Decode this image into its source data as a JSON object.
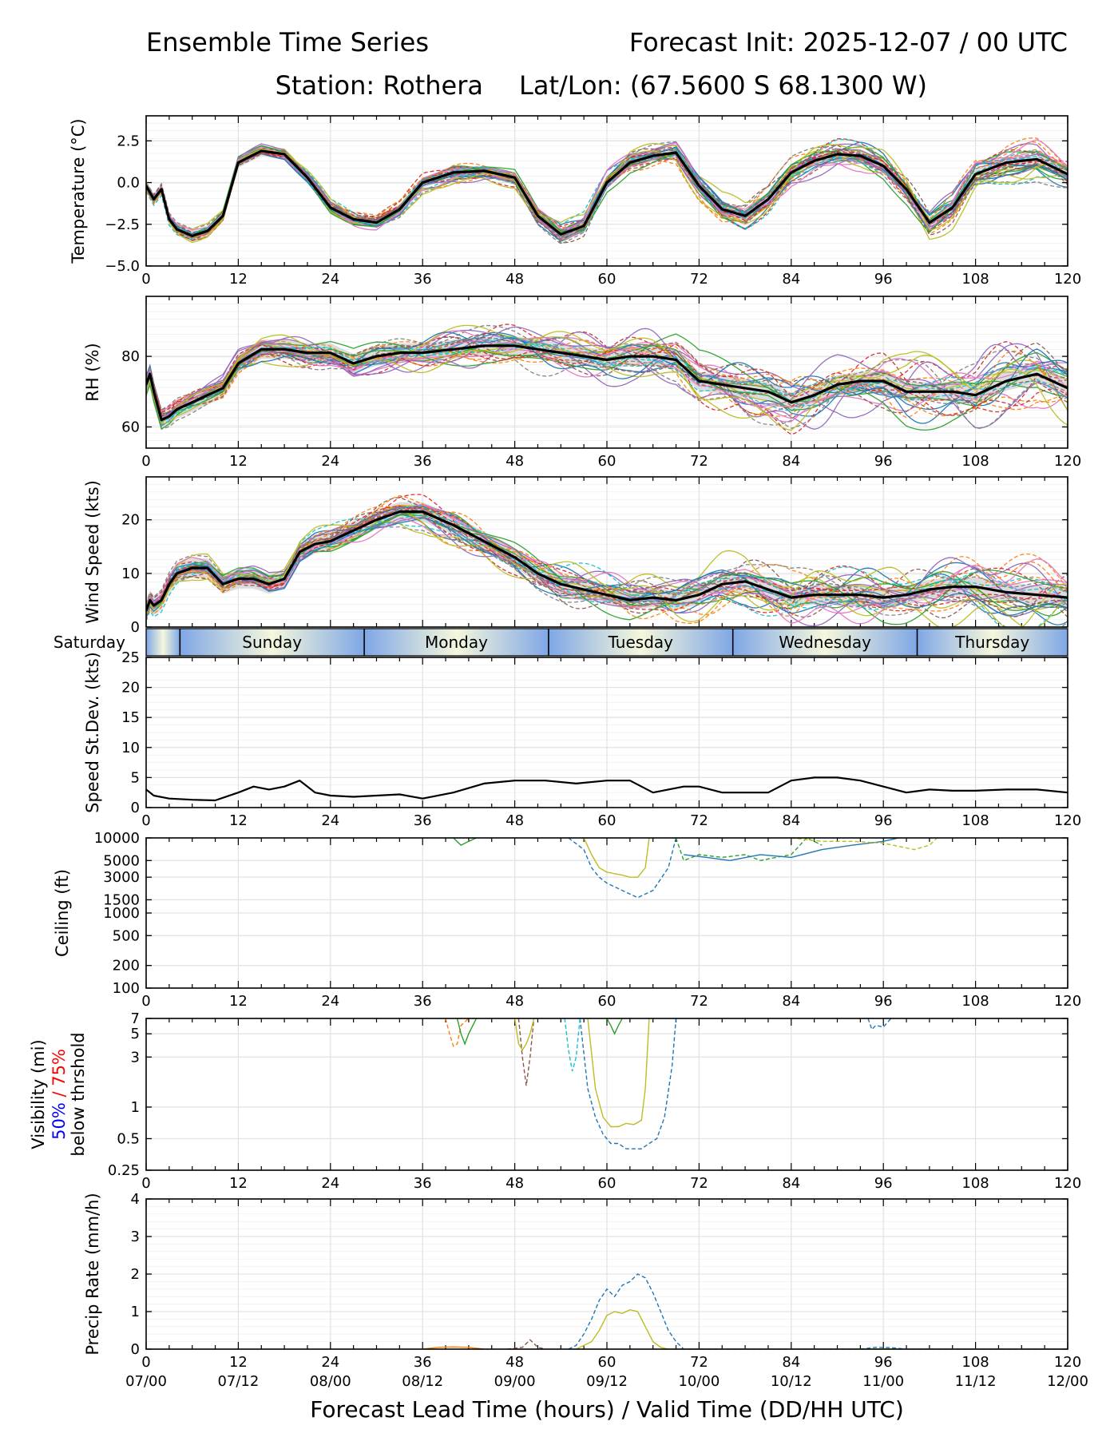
{
  "header": {
    "title_left": "Ensemble Time Series",
    "title_right": "Forecast Init: 2025-12-07 / 00 UTC",
    "station": "Station: Rothera",
    "latlon": "Lat/Lon: (67.5600 S 68.1300 W)"
  },
  "colors": {
    "mean": "#000000",
    "spread": "#d3d3d3",
    "members": [
      "#1f77b4",
      "#ff7f0e",
      "#2ca02c",
      "#d62728",
      "#9467bd",
      "#8c564b",
      "#e377c2",
      "#7f7f7f",
      "#bcbd22",
      "#17becf"
    ],
    "day_band_start": "#7fa7e6",
    "day_band_end": "#f5f7dc",
    "vis_50": "#0000ff",
    "vis_75": "#ff0000"
  },
  "day_band": {
    "labels": [
      "Saturday",
      "Sunday",
      "Monday",
      "Tuesday",
      "Wednesday",
      "Thursday"
    ],
    "boundaries_hours": [
      4.4,
      28.4,
      52.4,
      76.4,
      100.4
    ]
  },
  "x_axis": {
    "label": "Forecast Lead Time (hours) / Valid Time (DD/HH UTC)",
    "ticks": [
      0,
      12,
      24,
      36,
      48,
      60,
      72,
      84,
      96,
      108,
      120
    ],
    "tick_labels": [
      "0",
      "12",
      "24",
      "36",
      "48",
      "60",
      "72",
      "84",
      "96",
      "108",
      "120"
    ],
    "valid_labels": [
      "07/00",
      "07/12",
      "08/00",
      "08/12",
      "09/00",
      "09/12",
      "10/00",
      "10/12",
      "11/00",
      "11/12",
      "12/00"
    ],
    "range": [
      0,
      120
    ]
  },
  "chart_data": [
    {
      "id": "temp",
      "type": "line",
      "ylabel": "Temperature (°C)",
      "scale": "linear",
      "ylim": [
        -5,
        4
      ],
      "yticks": [
        -5,
        -2.5,
        0,
        2.5
      ],
      "ytick_labels": [
        "−5.0",
        "−2.5",
        "0.0",
        "2.5"
      ],
      "x": [
        0,
        1,
        2,
        3,
        4,
        6,
        8,
        10,
        12,
        15,
        18,
        21,
        24,
        27,
        30,
        33,
        36,
        40,
        44,
        48,
        51,
        54,
        57,
        60,
        63,
        66,
        69,
        72,
        75,
        78,
        81,
        84,
        87,
        90,
        93,
        96,
        99,
        102,
        105,
        108,
        112,
        116,
        120
      ],
      "mean": [
        -0.2,
        -1.0,
        -0.4,
        -2.2,
        -2.8,
        -3.2,
        -2.9,
        -2.0,
        1.2,
        1.9,
        1.7,
        0.3,
        -1.5,
        -2.2,
        -2.4,
        -1.6,
        0.0,
        0.6,
        0.7,
        0.3,
        -2.0,
        -3.1,
        -2.6,
        0.0,
        1.2,
        1.6,
        1.8,
        -0.2,
        -1.6,
        -2.0,
        -1.0,
        0.6,
        1.3,
        1.7,
        1.6,
        1.0,
        -0.4,
        -2.4,
        -1.5,
        0.5,
        1.2,
        1.4,
        0.5
      ],
      "spread": 0.35,
      "series_count": 30
    },
    {
      "id": "rh",
      "type": "line",
      "ylabel": "RH (%)",
      "scale": "linear",
      "ylim": [
        54,
        97
      ],
      "yticks": [
        60,
        80
      ],
      "ytick_labels": [
        "60",
        "80"
      ],
      "x": [
        0,
        0.5,
        1,
        2,
        3,
        4,
        6,
        8,
        10,
        12,
        15,
        18,
        21,
        24,
        27,
        30,
        33,
        36,
        40,
        44,
        48,
        51,
        54,
        57,
        60,
        63,
        66,
        69,
        72,
        75,
        78,
        81,
        84,
        87,
        90,
        93,
        96,
        99,
        102,
        105,
        108,
        112,
        116,
        120
      ],
      "mean": [
        72,
        75,
        70,
        62,
        63,
        65,
        67,
        69,
        71,
        78,
        82,
        82,
        81,
        81,
        78,
        80,
        81,
        81,
        82,
        83,
        83,
        82,
        81,
        80,
        79,
        80,
        80,
        79,
        73,
        72,
        71,
        70,
        67,
        69,
        72,
        73,
        73,
        70,
        70,
        70,
        69,
        73,
        75,
        71
      ],
      "spread": 3.0,
      "series_count": 30
    },
    {
      "id": "wind",
      "type": "line",
      "ylabel": "Wind Speed (kts)",
      "scale": "linear",
      "ylim": [
        0,
        28
      ],
      "yticks": [
        0,
        10,
        20
      ],
      "ytick_labels": [
        "0",
        "10",
        "20"
      ],
      "x": [
        0,
        0.5,
        1,
        2,
        3,
        4,
        6,
        8,
        10,
        12,
        14,
        16,
        18,
        20,
        22,
        24,
        27,
        30,
        33,
        36,
        40,
        44,
        48,
        51,
        54,
        57,
        60,
        63,
        66,
        69,
        72,
        75,
        78,
        81,
        84,
        87,
        90,
        93,
        96,
        99,
        102,
        105,
        108,
        112,
        116,
        120
      ],
      "mean": [
        3,
        5,
        4,
        5,
        8,
        10,
        11,
        11,
        8,
        9,
        9,
        8,
        9,
        14,
        15.5,
        16,
        18,
        20,
        21.5,
        21.5,
        19,
        16,
        13,
        10,
        8,
        7,
        6,
        5,
        5.5,
        5,
        6,
        8,
        8.5,
        7,
        5.5,
        6,
        6,
        6,
        5.5,
        6,
        7,
        7.5,
        7.5,
        6.5,
        6,
        5.5
      ],
      "spread": 2.0,
      "series_count": 30
    },
    {
      "id": "sd",
      "type": "line",
      "ylabel": "Speed St.Dev. (kts)",
      "scale": "linear",
      "ylim": [
        0,
        25
      ],
      "yticks": [
        0,
        5,
        10,
        15,
        20,
        25
      ],
      "ytick_labels": [
        "0",
        "5",
        "10",
        "15",
        "20",
        "25"
      ],
      "x": [
        0,
        1,
        3,
        6,
        9,
        12,
        14,
        16,
        18,
        20,
        22,
        24,
        27,
        30,
        33,
        36,
        40,
        44,
        48,
        52,
        56,
        60,
        63,
        66,
        70,
        72,
        75,
        78,
        81,
        84,
        87,
        90,
        93,
        96,
        99,
        102,
        105,
        108,
        112,
        116,
        120
      ],
      "mean": [
        3,
        2,
        1.5,
        1.3,
        1.2,
        2.5,
        3.5,
        3,
        3.5,
        4.5,
        2.5,
        2,
        1.8,
        2,
        2.2,
        1.5,
        2.5,
        4,
        4.5,
        4.5,
        4,
        4.5,
        4.5,
        2.5,
        3.5,
        3.5,
        2.5,
        2.5,
        2.5,
        4.5,
        5,
        5,
        4.5,
        3.5,
        2.5,
        3,
        2.8,
        2.8,
        3,
        3,
        2.5
      ],
      "series_count": 0
    },
    {
      "id": "ceil",
      "type": "line",
      "ylabel": "Ceiling (ft)",
      "scale": "log",
      "ylim": [
        100,
        10000
      ],
      "yticks": [
        100,
        200,
        500,
        1000,
        1500,
        3000,
        5000,
        10000
      ],
      "ytick_labels": [
        "100",
        "200",
        "500",
        "1000",
        "1500",
        "3000",
        "5000",
        "10000"
      ],
      "series": [
        {
          "name": "member-a",
          "color_index": 0,
          "x": [
            55,
            57,
            58,
            59,
            60,
            62,
            64,
            66,
            68,
            69
          ],
          "values": [
            10000,
            7000,
            4000,
            3000,
            2500,
            2000,
            1600,
            2000,
            4000,
            10000
          ]
        },
        {
          "name": "member-b",
          "color_index": 8,
          "x": [
            57,
            58,
            59,
            60,
            62,
            63,
            64,
            65,
            65.5
          ],
          "values": [
            10000,
            6000,
            4000,
            3500,
            3200,
            3000,
            3000,
            4000,
            10000
          ]
        },
        {
          "name": "member-c",
          "color_index": 2,
          "x": [
            69,
            70,
            72,
            75,
            78,
            80,
            82,
            84,
            86,
            88
          ],
          "values": [
            10000,
            5000,
            6000,
            5500,
            6000,
            5000,
            5500,
            6000,
            10000,
            8000
          ]
        },
        {
          "name": "member-d",
          "color_index": 0,
          "x": [
            70,
            73,
            76,
            80,
            84,
            88,
            92,
            96,
            98
          ],
          "values": [
            6000,
            5500,
            5000,
            6000,
            5500,
            7000,
            8000,
            9000,
            10000
          ]
        },
        {
          "name": "member-e",
          "color_index": 8,
          "x": [
            84,
            88,
            92,
            96,
            100,
            102,
            103
          ],
          "values": [
            10000,
            9000,
            9000,
            8500,
            7000,
            8000,
            10000
          ]
        },
        {
          "name": "member-f",
          "color_index": 2,
          "x": [
            40,
            41,
            42,
            43
          ],
          "values": [
            10000,
            8000,
            9000,
            10000
          ]
        }
      ]
    },
    {
      "id": "vis",
      "type": "line",
      "ylabel": "Visibility (mi)",
      "ylabel2_a": "50%",
      "ylabel2_b": " / 75%",
      "ylabel3": "below thrshold",
      "scale": "log",
      "ylim": [
        0.25,
        7
      ],
      "yticks": [
        0.25,
        0.5,
        1,
        3,
        5,
        7
      ],
      "ytick_labels": [
        "0.25",
        "0.5",
        "1",
        "3",
        "5",
        "7"
      ],
      "series": [
        {
          "name": "member-a",
          "color_index": 0,
          "x": [
            56.5,
            57.5,
            58.5,
            59.5,
            60.5,
            61.5,
            62.5,
            63.5,
            64.5,
            65.5,
            66.5,
            67.5,
            68.5,
            69
          ],
          "values": [
            7,
            1.5,
            0.8,
            0.55,
            0.45,
            0.45,
            0.4,
            0.4,
            0.4,
            0.45,
            0.5,
            0.8,
            2.5,
            7
          ]
        },
        {
          "name": "member-b",
          "color_index": 8,
          "x": [
            57.5,
            58.5,
            59.5,
            60.5,
            61.5,
            62.5,
            63.5,
            64.5,
            65,
            65.5
          ],
          "values": [
            7,
            1.5,
            0.8,
            0.65,
            0.65,
            0.7,
            0.68,
            0.75,
            1.5,
            7
          ]
        },
        {
          "name": "member-c",
          "color_index": 1,
          "x": [
            39,
            39.5,
            40,
            40.5,
            41,
            42
          ],
          "values": [
            7,
            5,
            3.8,
            4,
            6,
            7
          ]
        },
        {
          "name": "member-d",
          "color_index": 2,
          "x": [
            40.5,
            41,
            41.5,
            42,
            43
          ],
          "values": [
            7,
            5,
            4,
            5,
            7
          ]
        },
        {
          "name": "member-e",
          "color_index": 5,
          "x": [
            48.5,
            49,
            49.5,
            50,
            50.5
          ],
          "values": [
            7,
            3,
            1.6,
            3,
            7
          ]
        },
        {
          "name": "member-f",
          "color_index": 8,
          "x": [
            48,
            48.5,
            49,
            49.5,
            50,
            50.5
          ],
          "values": [
            7,
            4,
            3.5,
            4,
            5,
            7
          ]
        },
        {
          "name": "member-g",
          "color_index": 9,
          "x": [
            54.5,
            55,
            55.5,
            56,
            56.5
          ],
          "values": [
            7,
            3.5,
            2.2,
            3,
            7
          ]
        },
        {
          "name": "member-h",
          "color_index": 2,
          "x": [
            60,
            60.5,
            61,
            61.5,
            62
          ],
          "values": [
            7,
            6,
            5,
            6,
            7
          ]
        },
        {
          "name": "member-i",
          "color_index": 0,
          "x": [
            94,
            94.5,
            95,
            96,
            97
          ],
          "values": [
            7,
            5.5,
            6,
            5.8,
            7
          ]
        }
      ]
    },
    {
      "id": "precip",
      "type": "line",
      "ylabel": "Precip Rate (mm/h)",
      "scale": "linear",
      "ylim": [
        0,
        4
      ],
      "yticks": [
        0,
        1,
        2,
        3,
        4
      ],
      "ytick_labels": [
        "0",
        "1",
        "2",
        "3",
        "4"
      ],
      "series": [
        {
          "name": "member-a",
          "color_index": 0,
          "x": [
            55,
            56,
            57,
            58,
            59,
            60,
            61,
            62,
            63,
            64,
            65,
            66,
            67,
            68,
            69,
            70,
            120
          ],
          "values": [
            0,
            0.1,
            0.4,
            0.8,
            1.3,
            1.6,
            1.4,
            1.7,
            1.8,
            2.0,
            1.9,
            1.5,
            1.0,
            0.5,
            0.2,
            0,
            0
          ]
        },
        {
          "name": "member-b",
          "color_index": 8,
          "x": [
            56,
            58,
            59,
            60,
            61,
            62,
            63,
            64,
            65,
            66,
            67,
            68,
            120
          ],
          "values": [
            0,
            0.2,
            0.5,
            0.9,
            1.0,
            0.95,
            1.05,
            1.0,
            0.6,
            0.2,
            0.05,
            0,
            0
          ]
        },
        {
          "name": "member-c",
          "color_index": 5,
          "x": [
            47,
            49,
            50,
            51,
            52
          ],
          "values": [
            0,
            0.05,
            0.25,
            0.05,
            0
          ]
        },
        {
          "name": "member-d",
          "color_index": 1,
          "x": [
            36,
            38,
            40,
            42,
            44
          ],
          "values": [
            0,
            0.05,
            0.06,
            0.05,
            0
          ]
        },
        {
          "name": "member-e",
          "color_index": 0,
          "x": [
            93,
            95,
            97,
            99
          ],
          "values": [
            0,
            0.05,
            0.04,
            0
          ]
        }
      ]
    }
  ]
}
